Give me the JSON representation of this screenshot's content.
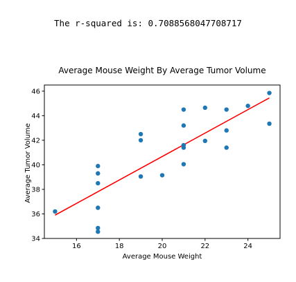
{
  "output": {
    "text": "The r-squared is: 0.7088568047708717"
  },
  "colors": {
    "points": "#1f77b4",
    "regression_line": "#ff0000",
    "axes": "#000000"
  },
  "chart_data": {
    "type": "scatter",
    "title": "Average Mouse Weight By Average Tumor Volume",
    "xlabel": "Average Mouse Weight",
    "ylabel": "Average Tumor Volume",
    "xlim": [
      14.5,
      25.5
    ],
    "ylim": [
      34,
      46.5
    ],
    "xticks": [
      16,
      18,
      20,
      22,
      24
    ],
    "yticks": [
      34,
      36,
      38,
      40,
      42,
      44,
      46
    ],
    "grid": false,
    "series": [
      {
        "type": "scatter",
        "points": [
          {
            "x": 15,
            "y": 36.2
          },
          {
            "x": 17,
            "y": 39.9
          },
          {
            "x": 17,
            "y": 39.3
          },
          {
            "x": 17,
            "y": 38.5
          },
          {
            "x": 17,
            "y": 36.5
          },
          {
            "x": 17,
            "y": 34.85
          },
          {
            "x": 17,
            "y": 34.55
          },
          {
            "x": 19,
            "y": 42.5
          },
          {
            "x": 19,
            "y": 42.0
          },
          {
            "x": 19,
            "y": 39.05
          },
          {
            "x": 20,
            "y": 39.15
          },
          {
            "x": 21,
            "y": 44.5
          },
          {
            "x": 21,
            "y": 43.2
          },
          {
            "x": 21,
            "y": 41.6
          },
          {
            "x": 21,
            "y": 41.4
          },
          {
            "x": 21,
            "y": 40.05
          },
          {
            "x": 22,
            "y": 44.65
          },
          {
            "x": 22,
            "y": 41.95
          },
          {
            "x": 23,
            "y": 44.5
          },
          {
            "x": 23,
            "y": 42.8
          },
          {
            "x": 23,
            "y": 41.4
          },
          {
            "x": 24,
            "y": 44.8
          },
          {
            "x": 25,
            "y": 45.85
          },
          {
            "x": 25,
            "y": 43.35
          }
        ]
      },
      {
        "type": "line",
        "x": [
          15,
          25
        ],
        "y": [
          35.9,
          45.45
        ]
      }
    ]
  }
}
